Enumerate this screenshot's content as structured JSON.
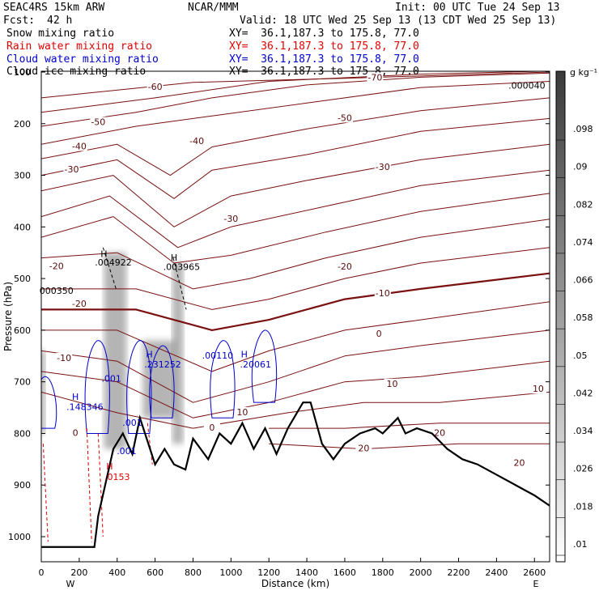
{
  "header": {
    "model": "SEAC4RS 15km ARW",
    "source": "NCAR/MMM",
    "init": "Init: 00 UTC Tue 24 Sep 13",
    "fcst_label": "Fcst:",
    "fcst_value": "42 h",
    "valid": "Valid: 18 UTC Wed 25 Sep 13 (13 CDT Wed 25 Sep 13)",
    "fields": [
      {
        "name": "Snow mixing ratio",
        "xy": "XY=  36.1,187.3 to 175.8, 77.0",
        "color": "#000000"
      },
      {
        "name": "Rain water mixing ratio",
        "xy": "XY=  36.1,187.3 to 175.8, 77.0",
        "color": "#e00000"
      },
      {
        "name": "Cloud water mixing ratio",
        "xy": "XY=  36.1,187.3 to 175.8, 77.0",
        "color": "#0000cc"
      },
      {
        "name": "Cloud ice mixing ratio",
        "xy": "XY=  36.1,187.3 to 175.8, 77.0",
        "color": "#000000"
      }
    ]
  },
  "chart_data": {
    "type": "cross-section",
    "ylabel": "Pressure (hPa)",
    "xlabel": "Distance (km)",
    "xlim": [
      0,
      2680
    ],
    "ylim": [
      1050,
      100
    ],
    "x_ticks": [
      0,
      200,
      400,
      600,
      800,
      1000,
      1200,
      1400,
      1600,
      1800,
      2000,
      2200,
      2400,
      2600
    ],
    "y_ticks": [
      100,
      200,
      300,
      400,
      500,
      600,
      700,
      800,
      900,
      1000
    ],
    "x_ends": {
      "left": "W",
      "right": "E"
    },
    "colorbar": {
      "unit": "g kg⁻¹",
      "ticks": [
        ".01",
        ".018",
        ".026",
        ".034",
        ".042",
        ".05",
        ".058",
        ".066",
        ".074",
        ".082",
        ".09",
        ".098"
      ]
    },
    "temperature_contour_labels": [
      "-70",
      "-60",
      "-50",
      "-40",
      "-30",
      "-20",
      "-10",
      "0",
      "10",
      "20"
    ],
    "terrain": {
      "x": [
        0,
        280,
        300,
        380,
        430,
        480,
        520,
        600,
        650,
        700,
        760,
        800,
        880,
        940,
        1000,
        1060,
        1120,
        1180,
        1240,
        1300,
        1380,
        1420,
        1480,
        1540,
        1600,
        1680,
        1760,
        1800,
        1880,
        1920,
        1980,
        2060,
        2140,
        2220,
        2300,
        2400,
        2500,
        2600,
        2680
      ],
      "p": [
        1020,
        1020,
        960,
        830,
        800,
        840,
        770,
        860,
        830,
        860,
        870,
        810,
        850,
        800,
        820,
        780,
        830,
        790,
        840,
        790,
        740,
        740,
        820,
        850,
        820,
        800,
        790,
        800,
        770,
        800,
        790,
        800,
        830,
        850,
        860,
        880,
        900,
        920,
        940
      ]
    },
    "annotations": [
      {
        "text": "H",
        "x": 330,
        "p": 458,
        "color": "#000000"
      },
      {
        "text": ".004922",
        "x": 380,
        "p": 475,
        "color": "#000000"
      },
      {
        "text": "H",
        "x": 700,
        "p": 465,
        "color": "#000000"
      },
      {
        "text": ".003965",
        "x": 740,
        "p": 483,
        "color": "#000000"
      },
      {
        "text": ".000040",
        "x": 2560,
        "p": 132,
        "color": "#000000"
      },
      {
        "text": "000350",
        "x": 80,
        "p": 530,
        "color": "#000000"
      },
      {
        "text": "H",
        "x": 570,
        "p": 653,
        "color": "#0000cc"
      },
      {
        "text": ".231252",
        "x": 640,
        "p": 672,
        "color": "#0000cc"
      },
      {
        "text": ".00110",
        "x": 930,
        "p": 655,
        "color": "#0000cc"
      },
      {
        "text": "H",
        "x": 1070,
        "p": 653,
        "color": "#0000cc"
      },
      {
        "text": ".20061",
        "x": 1130,
        "p": 672,
        "color": "#0000cc"
      },
      {
        "text": ".001",
        "x": 370,
        "p": 700,
        "color": "#0000cc"
      },
      {
        "text": "H",
        "x": 180,
        "p": 735,
        "color": "#0000cc"
      },
      {
        "text": ".148346",
        "x": 230,
        "p": 755,
        "color": "#0000cc"
      },
      {
        "text": ".001",
        "x": 480,
        "p": 785,
        "color": "#0000cc"
      },
      {
        "text": ".001",
        "x": 450,
        "p": 840,
        "color": "#0000cc"
      },
      {
        "text": "H",
        "x": 360,
        "p": 870,
        "color": "#e00000"
      },
      {
        "text": ".0153",
        "x": 400,
        "p": 890,
        "color": "#e00000"
      }
    ]
  }
}
